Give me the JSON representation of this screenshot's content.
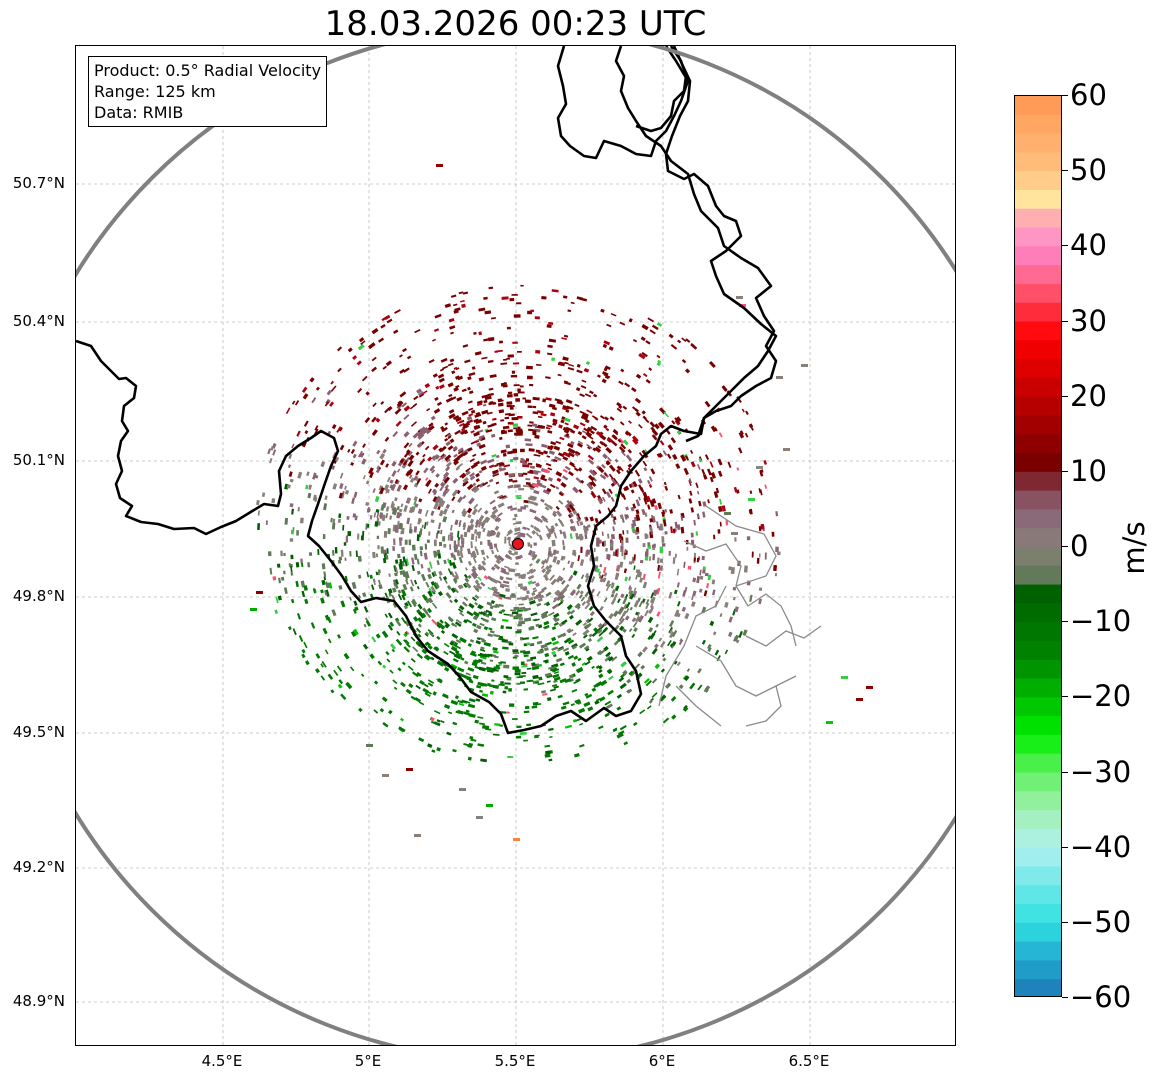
{
  "title": "18.03.2026 00:23 UTC",
  "info": {
    "product": "Product: 0.5° Radial Velocity",
    "range": "Range: 125 km",
    "source": "Data: RMIB"
  },
  "axes": {
    "lat_ticks": [
      "50.7°N",
      "50.4°N",
      "50.1°N",
      "49.8°N",
      "49.5°N",
      "49.2°N",
      "48.9°N"
    ],
    "lon_ticks": [
      "4.5°E",
      "5°E",
      "5.5°E",
      "6°E",
      "6.5°E"
    ]
  },
  "colorbar": {
    "unit": "m/s",
    "ticks": [
      "60",
      "50",
      "40",
      "30",
      "20",
      "10",
      "0",
      "−10",
      "−20",
      "−30",
      "−40",
      "−50",
      "−60"
    ],
    "range": [
      -60,
      60
    ],
    "stops": [
      {
        "v": 60,
        "c": "#ff9650"
      },
      {
        "v": 50,
        "c": "#ffc080"
      },
      {
        "v": 46,
        "c": "#ffe6a0"
      },
      {
        "v": 44,
        "c": "#ffb0b0"
      },
      {
        "v": 40,
        "c": "#ff88cc"
      },
      {
        "v": 35,
        "c": "#ff6080"
      },
      {
        "v": 28,
        "c": "#ff0000"
      },
      {
        "v": 20,
        "c": "#c00000"
      },
      {
        "v": 10,
        "c": "#700000"
      },
      {
        "v": 8,
        "c": "#884050"
      },
      {
        "v": 4,
        "c": "#8a6878"
      },
      {
        "v": 0,
        "c": "#888078"
      },
      {
        "v": -4,
        "c": "#607a58"
      },
      {
        "v": -6,
        "c": "#006000"
      },
      {
        "v": -15,
        "c": "#008800"
      },
      {
        "v": -25,
        "c": "#00ee00"
      },
      {
        "v": -30,
        "c": "#60f060"
      },
      {
        "v": -35,
        "c": "#a0f0b0"
      },
      {
        "v": -40,
        "c": "#b0f0f0"
      },
      {
        "v": -50,
        "c": "#30e0e0"
      },
      {
        "v": -55,
        "c": "#20a8d0"
      },
      {
        "v": -60,
        "c": "#1f77b4"
      }
    ]
  },
  "radar": {
    "site_color": "#e8141e",
    "range_ring_color": "#808080"
  }
}
